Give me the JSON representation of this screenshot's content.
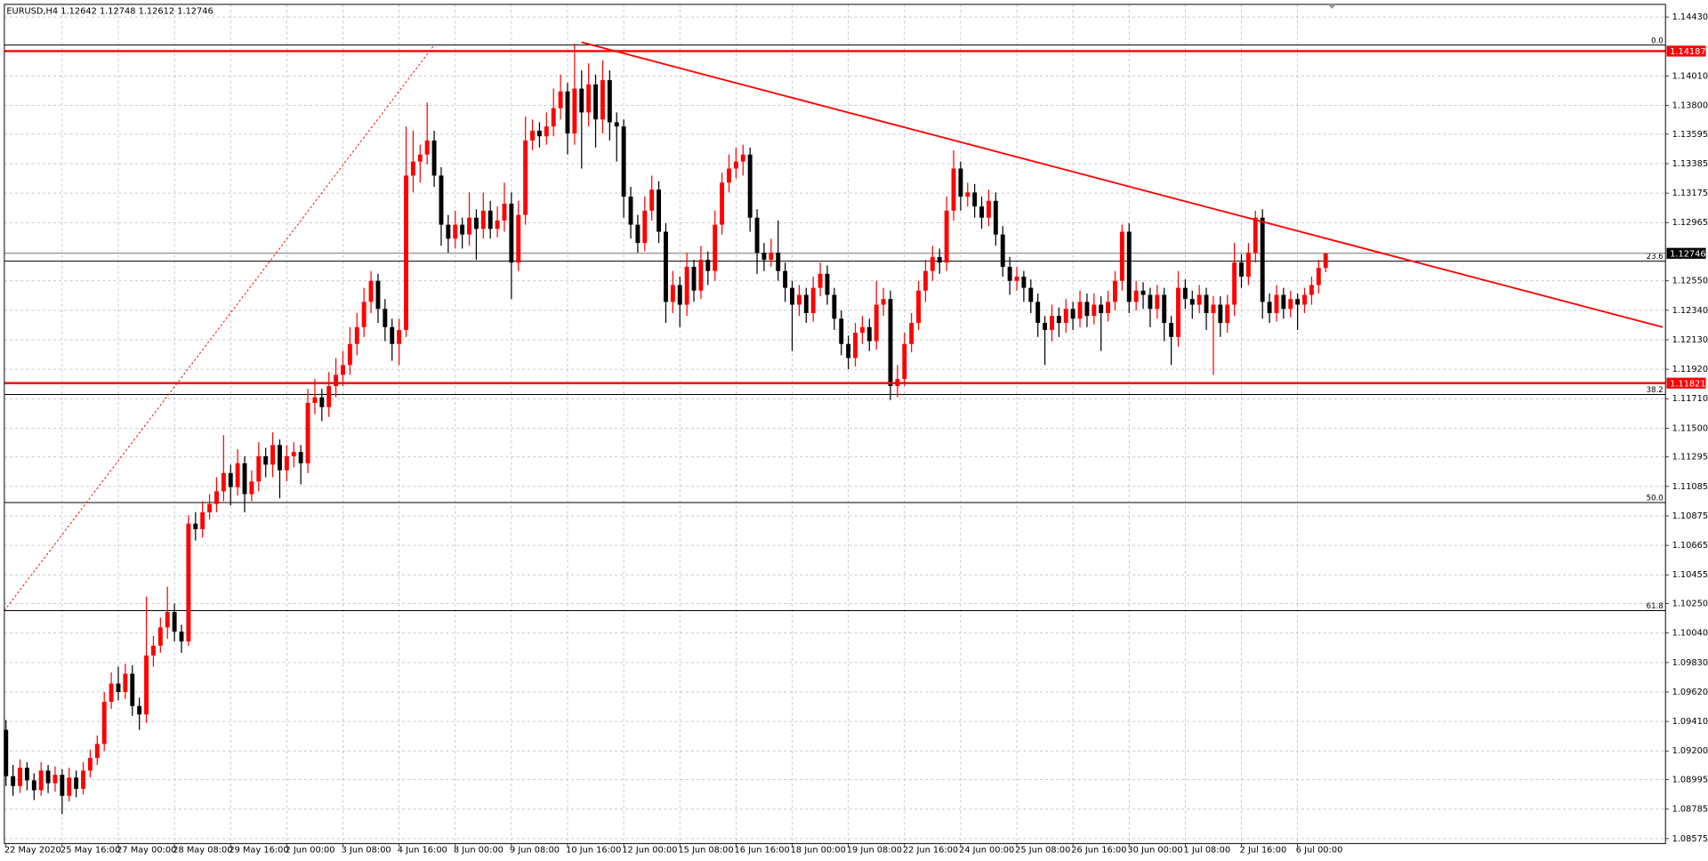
{
  "chart_data": {
    "type": "candlestick",
    "title": "EURUSD,H4",
    "bull_color": "#ff0000",
    "bear_color": "#000000",
    "grid": true,
    "ylim": [
      1.0854,
      1.1452
    ],
    "yticks": [
      {
        "value": 1.1443,
        "label": "1.14430"
      },
      {
        "value": 1.1401,
        "label": "1.14010"
      },
      {
        "value": 1.138,
        "label": "1.13800"
      },
      1.13595,
      1.13385,
      1.13175,
      1.12965,
      {
        "value": 1.1255,
        "label": "1.12550"
      },
      {
        "value": 1.1234,
        "label": "1.12340"
      },
      {
        "value": 1.1213,
        "label": "1.12130"
      },
      {
        "value": 1.1192,
        "label": "1.11920"
      },
      {
        "value": 1.1171,
        "label": "1.11710"
      },
      {
        "value": 1.115,
        "label": "1.11500"
      },
      1.11295,
      1.11085,
      1.10875,
      1.10665,
      1.10455,
      {
        "value": 1.1025,
        "label": "1.10250"
      },
      {
        "value": 1.1004,
        "label": "1.10040"
      },
      {
        "value": 1.0983,
        "label": "1.09830"
      },
      {
        "value": 1.0962,
        "label": "1.09620"
      },
      {
        "value": 1.0941,
        "label": "1.09410"
      },
      {
        "value": 1.092,
        "label": "1.09200"
      },
      1.08995,
      1.08785,
      1.08575
    ],
    "categories": [
      "22 May 2020",
      null,
      null,
      null,
      null,
      null,
      null,
      null,
      "25 May 16:00",
      null,
      null,
      null,
      null,
      null,
      null,
      null,
      "27 May 00:00",
      null,
      null,
      null,
      null,
      null,
      null,
      null,
      "28 May 08:00",
      null,
      null,
      null,
      null,
      null,
      null,
      null,
      "29 May 16:00",
      null,
      null,
      null,
      null,
      null,
      null,
      null,
      "2 Jun 00:00",
      null,
      null,
      null,
      null,
      null,
      null,
      null,
      "3 Jun 08:00",
      null,
      null,
      null,
      null,
      null,
      null,
      null,
      "4 Jun 16:00",
      null,
      null,
      null,
      null,
      null,
      null,
      null,
      "8 Jun 00:00",
      null,
      null,
      null,
      null,
      null,
      null,
      null,
      "9 Jun 08:00",
      null,
      null,
      null,
      null,
      null,
      null,
      null,
      "10 Jun 16:00",
      null,
      null,
      null,
      null,
      null,
      null,
      null,
      "12 Jun 00:00",
      null,
      null,
      null,
      null,
      null,
      null,
      null,
      "15 Jun 08:00",
      null,
      null,
      null,
      null,
      null,
      null,
      null,
      "16 Jun 16:00",
      null,
      null,
      null,
      null,
      null,
      null,
      null,
      "18 Jun 00:00",
      null,
      null,
      null,
      null,
      null,
      null,
      null,
      "19 Jun 08:00",
      null,
      null,
      null,
      null,
      null,
      null,
      null,
      "22 Jun 16:00",
      null,
      null,
      null,
      null,
      null,
      null,
      null,
      "24 Jun 00:00",
      null,
      null,
      null,
      null,
      null,
      null,
      null,
      "25 Jun 08:00",
      null,
      null,
      null,
      null,
      null,
      null,
      null,
      "26 Jun 16:00",
      null,
      null,
      null,
      null,
      null,
      null,
      null,
      "30 Jun 00:00",
      null,
      null,
      null,
      null,
      null,
      null,
      null,
      "1 Jul 08:00",
      null,
      null,
      null,
      null,
      null,
      null,
      null,
      "2 Jul 16:00",
      null,
      null,
      null,
      null,
      null,
      null,
      null,
      "6 Jul 00:00",
      null,
      null,
      null,
      null
    ],
    "candles": [
      [
        1.0935,
        1.0942,
        1.0895,
        1.0902
      ],
      [
        1.0902,
        1.091,
        1.0888,
        1.0895
      ],
      [
        1.0895,
        1.0914,
        1.089,
        1.0908
      ],
      [
        1.0908,
        1.0912,
        1.0892,
        1.0899
      ],
      [
        1.0899,
        1.0904,
        1.0885,
        1.0892
      ],
      [
        1.0892,
        1.0912,
        1.0888,
        1.0906
      ],
      [
        1.0906,
        1.091,
        1.089,
        1.0897
      ],
      [
        1.0897,
        1.0909,
        1.0891,
        1.0903
      ],
      [
        1.0903,
        1.0907,
        1.0875,
        1.0888
      ],
      [
        1.0888,
        1.0908,
        1.0884,
        1.0901
      ],
      [
        1.0901,
        1.0906,
        1.0887,
        1.0893
      ],
      [
        1.0893,
        1.0912,
        1.0889,
        1.0906
      ],
      [
        1.0906,
        1.0921,
        1.0901,
        1.0915
      ],
      [
        1.0915,
        1.0931,
        1.091,
        1.0925
      ],
      [
        1.0925,
        1.0962,
        1.092,
        1.0955
      ],
      [
        1.0955,
        1.0976,
        1.095,
        1.0968
      ],
      [
        1.0968,
        1.098,
        1.0956,
        1.0962
      ],
      [
        1.0962,
        1.0982,
        1.0957,
        1.0975
      ],
      [
        1.0975,
        1.0981,
        1.0945,
        1.0952
      ],
      [
        1.0952,
        1.0958,
        1.0935,
        1.0946
      ],
      [
        1.0946,
        1.103,
        1.094,
        1.0988
      ],
      [
        1.0988,
        1.1002,
        1.098,
        1.0995
      ],
      [
        1.0995,
        1.1015,
        1.099,
        1.1008
      ],
      [
        1.1008,
        1.1037,
        1.1,
        1.1019
      ],
      [
        1.1019,
        1.1025,
        1.0998,
        1.1005
      ],
      [
        1.1005,
        1.101,
        1.099,
        1.0998
      ],
      [
        1.0998,
        1.1088,
        1.0995,
        1.1082
      ],
      [
        1.1082,
        1.109,
        1.107,
        1.1078
      ],
      [
        1.1078,
        1.1098,
        1.1072,
        1.109
      ],
      [
        1.109,
        1.1103,
        1.1085,
        1.1096
      ],
      [
        1.1096,
        1.1115,
        1.109,
        1.1105
      ],
      [
        1.1105,
        1.1145,
        1.1098,
        1.1118
      ],
      [
        1.1118,
        1.1124,
        1.1095,
        1.1108
      ],
      [
        1.1108,
        1.1135,
        1.1102,
        1.1125
      ],
      [
        1.1125,
        1.113,
        1.109,
        1.1103
      ],
      [
        1.1103,
        1.112,
        1.1098,
        1.1112
      ],
      [
        1.1112,
        1.114,
        1.1105,
        1.113
      ],
      [
        1.113,
        1.1136,
        1.1115,
        1.1124
      ],
      [
        1.1124,
        1.1147,
        1.1115,
        1.1138
      ],
      [
        1.1138,
        1.1142,
        1.11,
        1.112
      ],
      [
        1.112,
        1.1138,
        1.1112,
        1.113
      ],
      [
        1.113,
        1.114,
        1.1122,
        1.1133
      ],
      [
        1.1133,
        1.1138,
        1.111,
        1.1125
      ],
      [
        1.1125,
        1.1178,
        1.1118,
        1.1168
      ],
      [
        1.1168,
        1.1185,
        1.116,
        1.1172
      ],
      [
        1.1172,
        1.1178,
        1.1155,
        1.1165
      ],
      [
        1.1165,
        1.119,
        1.1158,
        1.118
      ],
      [
        1.118,
        1.12,
        1.1172,
        1.1188
      ],
      [
        1.1188,
        1.1205,
        1.118,
        1.1195
      ],
      [
        1.1195,
        1.1222,
        1.1188,
        1.121
      ],
      [
        1.121,
        1.1232,
        1.1202,
        1.1222
      ],
      [
        1.1222,
        1.125,
        1.1215,
        1.124
      ],
      [
        1.124,
        1.1262,
        1.1232,
        1.1255
      ],
      [
        1.1255,
        1.126,
        1.1225,
        1.1235
      ],
      [
        1.1235,
        1.1242,
        1.1212,
        1.1222
      ],
      [
        1.1222,
        1.1228,
        1.1198,
        1.121
      ],
      [
        1.121,
        1.1228,
        1.1195,
        1.122
      ],
      [
        1.122,
        1.1365,
        1.1215,
        1.133
      ],
      [
        1.133,
        1.1362,
        1.1318,
        1.134
      ],
      [
        1.134,
        1.1352,
        1.1325,
        1.1345
      ],
      [
        1.1345,
        1.1382,
        1.1338,
        1.1355
      ],
      [
        1.1355,
        1.1362,
        1.1322,
        1.133
      ],
      [
        1.133,
        1.1336,
        1.128,
        1.1295
      ],
      [
        1.1295,
        1.1302,
        1.1275,
        1.1285
      ],
      [
        1.1285,
        1.1305,
        1.1278,
        1.1295
      ],
      [
        1.1295,
        1.13,
        1.1278,
        1.1288
      ],
      [
        1.1288,
        1.1318,
        1.128,
        1.13
      ],
      [
        1.13,
        1.1306,
        1.127,
        1.1292
      ],
      [
        1.1292,
        1.1318,
        1.1285,
        1.1305
      ],
      [
        1.1305,
        1.1312,
        1.1285,
        1.1292
      ],
      [
        1.1292,
        1.1308,
        1.1286,
        1.1298
      ],
      [
        1.1298,
        1.1325,
        1.129,
        1.131
      ],
      [
        1.131,
        1.1318,
        1.1242,
        1.1268
      ],
      [
        1.1268,
        1.1312,
        1.1262,
        1.1302
      ],
      [
        1.1302,
        1.1372,
        1.1295,
        1.1355
      ],
      [
        1.1355,
        1.137,
        1.1348,
        1.1362
      ],
      [
        1.1362,
        1.1368,
        1.135,
        1.1358
      ],
      [
        1.1358,
        1.1375,
        1.1352,
        1.1365
      ],
      [
        1.1365,
        1.1392,
        1.1358,
        1.1378
      ],
      [
        1.1378,
        1.1402,
        1.137,
        1.139
      ],
      [
        1.139,
        1.1396,
        1.1345,
        1.136
      ],
      [
        1.136,
        1.1424,
        1.1352,
        1.1392
      ],
      [
        1.1392,
        1.1405,
        1.1335,
        1.1375
      ],
      [
        1.1375,
        1.141,
        1.1365,
        1.1395
      ],
      [
        1.1395,
        1.1402,
        1.135,
        1.137
      ],
      [
        1.137,
        1.1412,
        1.136,
        1.1398
      ],
      [
        1.1398,
        1.1405,
        1.1355,
        1.1368
      ],
      [
        1.1368,
        1.1375,
        1.134,
        1.1365
      ],
      [
        1.1365,
        1.137,
        1.13,
        1.1315
      ],
      [
        1.1315,
        1.1322,
        1.1285,
        1.1295
      ],
      [
        1.1295,
        1.1302,
        1.1275,
        1.1282
      ],
      [
        1.1282,
        1.1315,
        1.1276,
        1.1305
      ],
      [
        1.1305,
        1.133,
        1.1298,
        1.132
      ],
      [
        1.132,
        1.1326,
        1.1282,
        1.129
      ],
      [
        1.129,
        1.1296,
        1.1225,
        1.124
      ],
      [
        1.124,
        1.1262,
        1.1232,
        1.1252
      ],
      [
        1.1252,
        1.1258,
        1.1222,
        1.1238
      ],
      [
        1.1238,
        1.1275,
        1.123,
        1.1265
      ],
      [
        1.1265,
        1.127,
        1.124,
        1.1248
      ],
      [
        1.1248,
        1.128,
        1.1242,
        1.127
      ],
      [
        1.127,
        1.1276,
        1.1252,
        1.1262
      ],
      [
        1.1262,
        1.1305,
        1.1255,
        1.1295
      ],
      [
        1.1295,
        1.1332,
        1.1288,
        1.1325
      ],
      [
        1.1325,
        1.1345,
        1.1318,
        1.1335
      ],
      [
        1.1335,
        1.135,
        1.1328,
        1.134
      ],
      [
        1.134,
        1.1352,
        1.133,
        1.1345
      ],
      [
        1.1345,
        1.135,
        1.129,
        1.13
      ],
      [
        1.13,
        1.1306,
        1.126,
        1.1275
      ],
      [
        1.1275,
        1.1282,
        1.1262,
        1.127
      ],
      [
        1.127,
        1.1285,
        1.1265,
        1.1275
      ],
      [
        1.1275,
        1.1298,
        1.1255,
        1.1262
      ],
      [
        1.1262,
        1.1268,
        1.124,
        1.125
      ],
      [
        1.125,
        1.1255,
        1.1205,
        1.1238
      ],
      [
        1.1238,
        1.1252,
        1.123,
        1.1245
      ],
      [
        1.1245,
        1.125,
        1.1225,
        1.1232
      ],
      [
        1.1232,
        1.1258,
        1.1226,
        1.125
      ],
      [
        1.125,
        1.1268,
        1.1244,
        1.126
      ],
      [
        1.126,
        1.1266,
        1.1238,
        1.1245
      ],
      [
        1.1245,
        1.125,
        1.122,
        1.1228
      ],
      [
        1.1228,
        1.1234,
        1.1202,
        1.121
      ],
      [
        1.121,
        1.1216,
        1.1192,
        1.12
      ],
      [
        1.12,
        1.1225,
        1.1194,
        1.1218
      ],
      [
        1.1218,
        1.123,
        1.121,
        1.1222
      ],
      [
        1.1222,
        1.1228,
        1.1205,
        1.1212
      ],
      [
        1.1212,
        1.1255,
        1.1206,
        1.1238
      ],
      [
        1.1238,
        1.125,
        1.123,
        1.1242
      ],
      [
        1.1242,
        1.1248,
        1.117,
        1.118
      ],
      [
        1.118,
        1.1195,
        1.1172,
        1.1185
      ],
      [
        1.1185,
        1.1218,
        1.118,
        1.121
      ],
      [
        1.121,
        1.1232,
        1.1204,
        1.1225
      ],
      [
        1.1225,
        1.1255,
        1.122,
        1.1248
      ],
      [
        1.1248,
        1.127,
        1.124,
        1.1262
      ],
      [
        1.1262,
        1.128,
        1.1255,
        1.1272
      ],
      [
        1.1272,
        1.1278,
        1.126,
        1.1268
      ],
      [
        1.1268,
        1.1315,
        1.1262,
        1.1305
      ],
      [
        1.1305,
        1.1348,
        1.1298,
        1.1335
      ],
      [
        1.1335,
        1.134,
        1.1305,
        1.1315
      ],
      [
        1.1315,
        1.1325,
        1.1308,
        1.1318
      ],
      [
        1.1318,
        1.1324,
        1.13,
        1.1308
      ],
      [
        1.1308,
        1.1315,
        1.1292,
        1.13
      ],
      [
        1.13,
        1.132,
        1.1294,
        1.1312
      ],
      [
        1.1312,
        1.1318,
        1.128,
        1.1288
      ],
      [
        1.1288,
        1.1294,
        1.1258,
        1.1265
      ],
      [
        1.1265,
        1.1272,
        1.1245,
        1.1255
      ],
      [
        1.1255,
        1.1265,
        1.1248,
        1.1258
      ],
      [
        1.1258,
        1.1262,
        1.124,
        1.125
      ],
      [
        1.125,
        1.1256,
        1.1232,
        1.124
      ],
      [
        1.124,
        1.1246,
        1.1215,
        1.1225
      ],
      [
        1.1225,
        1.123,
        1.1195,
        1.122
      ],
      [
        1.122,
        1.1238,
        1.1212,
        1.123
      ],
      [
        1.123,
        1.1236,
        1.1215,
        1.1225
      ],
      [
        1.1225,
        1.1242,
        1.1218,
        1.1235
      ],
      [
        1.1235,
        1.124,
        1.122,
        1.1228
      ],
      [
        1.1228,
        1.1248,
        1.1222,
        1.124
      ],
      [
        1.124,
        1.1246,
        1.1222,
        1.123
      ],
      [
        1.123,
        1.1246,
        1.1224,
        1.1238
      ],
      [
        1.1238,
        1.1244,
        1.1205,
        1.1232
      ],
      [
        1.1232,
        1.1248,
        1.1226,
        1.124
      ],
      [
        1.124,
        1.1262,
        1.1234,
        1.1255
      ],
      [
        1.1255,
        1.1295,
        1.1248,
        1.129
      ],
      [
        1.129,
        1.1296,
        1.1232,
        1.124
      ],
      [
        1.124,
        1.1255,
        1.1234,
        1.1248
      ],
      [
        1.1248,
        1.1254,
        1.1235,
        1.1245
      ],
      [
        1.1245,
        1.125,
        1.1222,
        1.1235
      ],
      [
        1.1235,
        1.1252,
        1.1228,
        1.1245
      ],
      [
        1.1245,
        1.125,
        1.1212,
        1.1225
      ],
      [
        1.1225,
        1.123,
        1.1195,
        1.1215
      ],
      [
        1.1215,
        1.1262,
        1.1208,
        1.125
      ],
      [
        1.125,
        1.1256,
        1.1235,
        1.1242
      ],
      [
        1.1242,
        1.1248,
        1.1228,
        1.1238
      ],
      [
        1.1238,
        1.1252,
        1.1232,
        1.1245
      ],
      [
        1.1245,
        1.125,
        1.122,
        1.1232
      ],
      [
        1.1232,
        1.1244,
        1.1188,
        1.1238
      ],
      [
        1.1238,
        1.1244,
        1.1215,
        1.1225
      ],
      [
        1.1225,
        1.1245,
        1.1218,
        1.1238
      ],
      [
        1.1238,
        1.1282,
        1.123,
        1.1268
      ],
      [
        1.1268,
        1.1274,
        1.125,
        1.1258
      ],
      [
        1.1258,
        1.1282,
        1.1252,
        1.1275
      ],
      [
        1.1275,
        1.1305,
        1.1268,
        1.13
      ],
      [
        1.13,
        1.1306,
        1.1228,
        1.124
      ],
      [
        1.124,
        1.1246,
        1.1225,
        1.1232
      ],
      [
        1.1232,
        1.1252,
        1.1226,
        1.1245
      ],
      [
        1.1245,
        1.125,
        1.1228,
        1.1235
      ],
      [
        1.1235,
        1.1248,
        1.1229,
        1.1242
      ],
      [
        1.1242,
        1.1246,
        1.122,
        1.1238
      ],
      [
        1.1238,
        1.125,
        1.1232,
        1.1245
      ],
      [
        1.1245,
        1.1258,
        1.1238,
        1.1252
      ],
      [
        1.1252,
        1.127,
        1.1246,
        1.12642
      ],
      [
        1.12642,
        1.12748,
        1.12612,
        1.12746
      ]
    ],
    "hlines": [
      {
        "value": 1.14187,
        "color": "#ff0000"
      },
      {
        "value": 1.11821,
        "color": "#ff0000"
      }
    ],
    "trendline": {
      "color": "#ff0000",
      "points": [
        [
          82,
          1.1425
        ],
        [
          236,
          1.1222
        ]
      ]
    },
    "fibo": {
      "color": "#ff0000",
      "from": [
        0,
        1.102
      ],
      "to": [
        61,
        1.1423
      ],
      "levels": [
        {
          "label": "0.0",
          "price": 1.1423
        },
        {
          "label": "23.6",
          "price": 1.1269
        },
        {
          "label": "38.2",
          "price": 1.1174
        },
        {
          "label": "50.0",
          "price": 1.1097
        },
        {
          "label": "61.8",
          "price": 1.102
        }
      ]
    }
  }
}
